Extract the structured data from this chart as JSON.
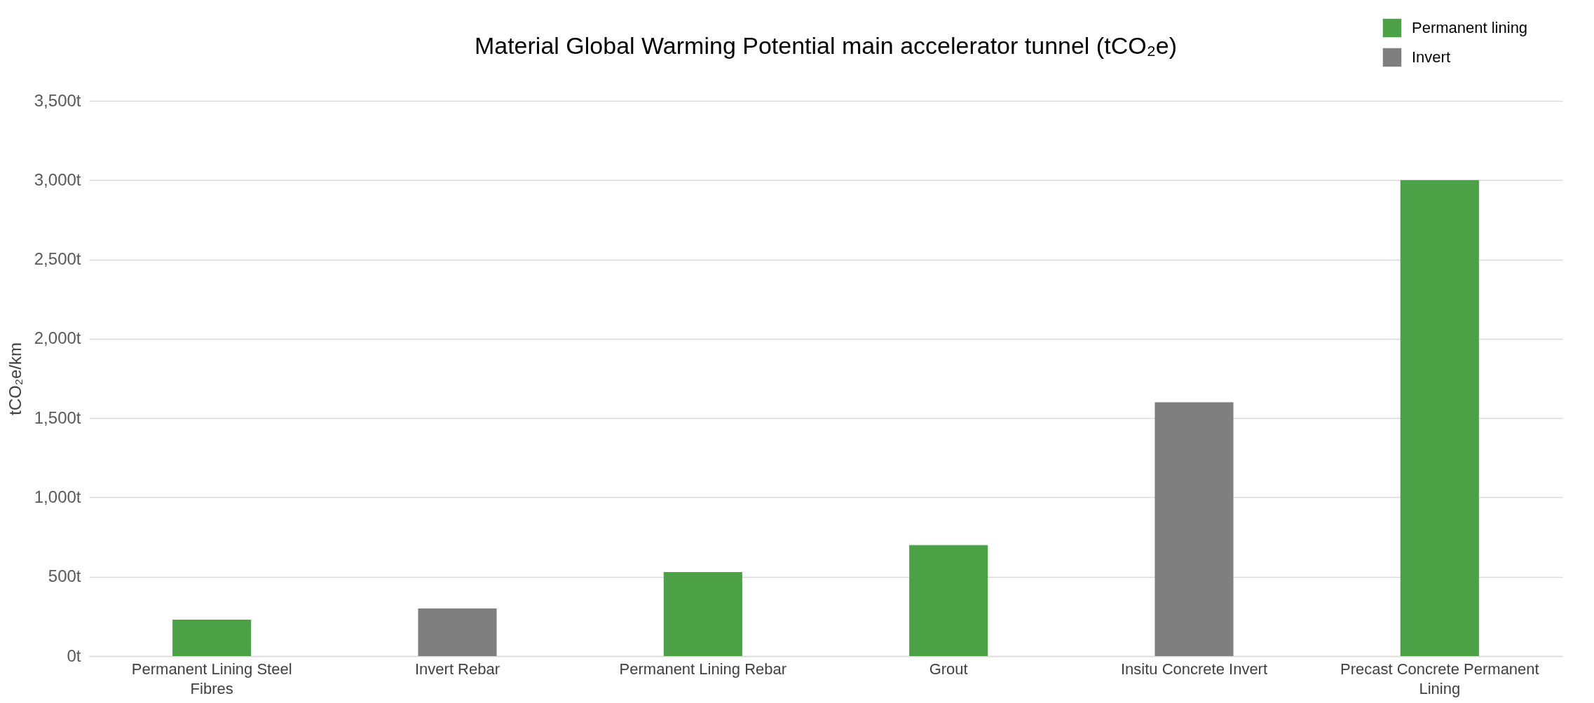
{
  "chart_data": {
    "type": "bar",
    "title": "Material Global Warming Potential main accelerator tunnel (tCO₂e)",
    "ylabel": "tCO₂e/km",
    "categories": [
      "Permanent Lining Steel Fibres",
      "Invert Rebar",
      "Permanent Lining Rebar",
      "Grout",
      "Insitu Concrete Invert",
      "Precast Concrete Permanent Lining"
    ],
    "series": [
      {
        "name": "Permanent lining",
        "color": "#4ca146",
        "values": [
          230,
          null,
          530,
          700,
          null,
          3000
        ]
      },
      {
        "name": "Invert",
        "color": "#7f7f7f",
        "values": [
          null,
          300,
          null,
          null,
          1600,
          null
        ]
      }
    ],
    "ylim": [
      0,
      3500
    ],
    "yticks": [
      {
        "value": 0,
        "label": "0t"
      },
      {
        "value": 500,
        "label": "500t"
      },
      {
        "value": 1000,
        "label": "1,000t"
      },
      {
        "value": 1500,
        "label": "1,500t"
      },
      {
        "value": 2000,
        "label": "2,000t"
      },
      {
        "value": 2500,
        "label": "2,500t"
      },
      {
        "value": 3000,
        "label": "3,000t"
      },
      {
        "value": 3500,
        "label": "3,500t"
      }
    ],
    "grid": "y",
    "legend": "top right"
  }
}
